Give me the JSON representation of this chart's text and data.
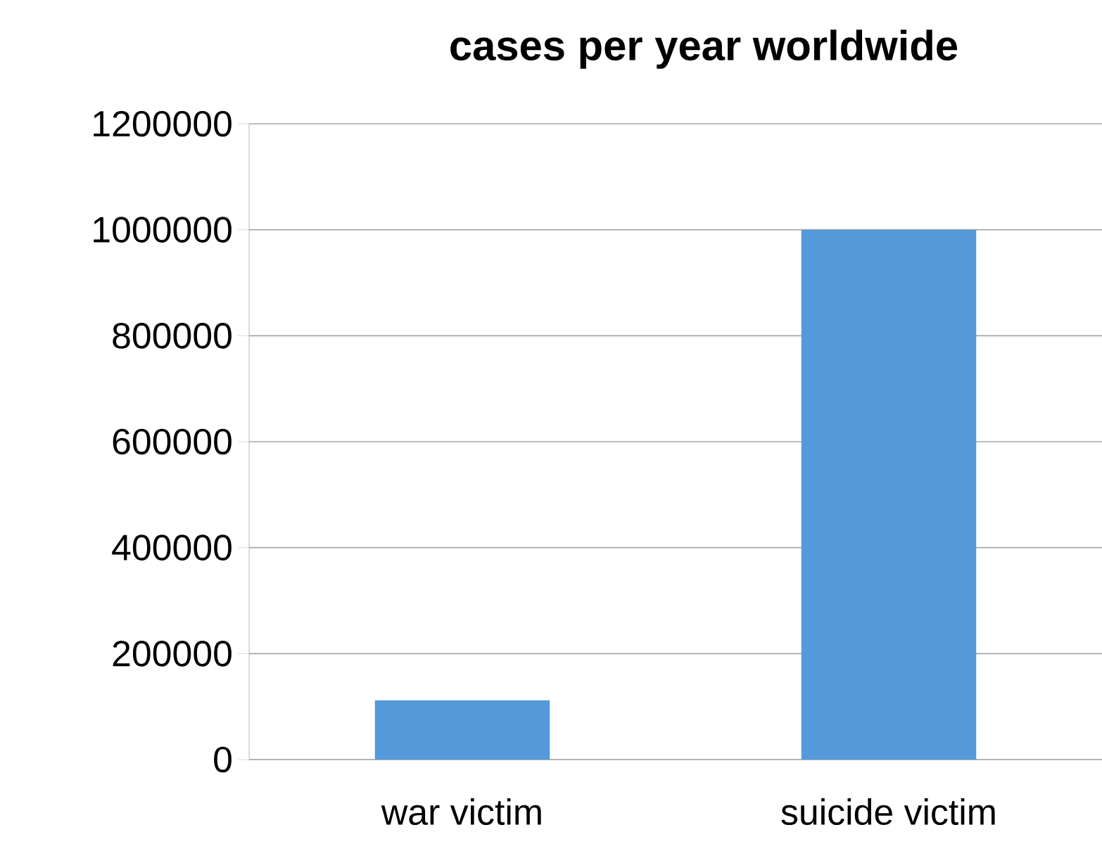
{
  "chart_data": {
    "type": "bar",
    "title": "cases per year worldwide",
    "categories": [
      "war victim",
      "suicide victim"
    ],
    "values": [
      112000,
      1000000
    ],
    "color": "#5499d9",
    "ylim": [
      0,
      1200000
    ],
    "yticks": [
      0,
      200000,
      400000,
      600000,
      800000,
      1000000,
      1200000
    ],
    "grid": "y"
  }
}
